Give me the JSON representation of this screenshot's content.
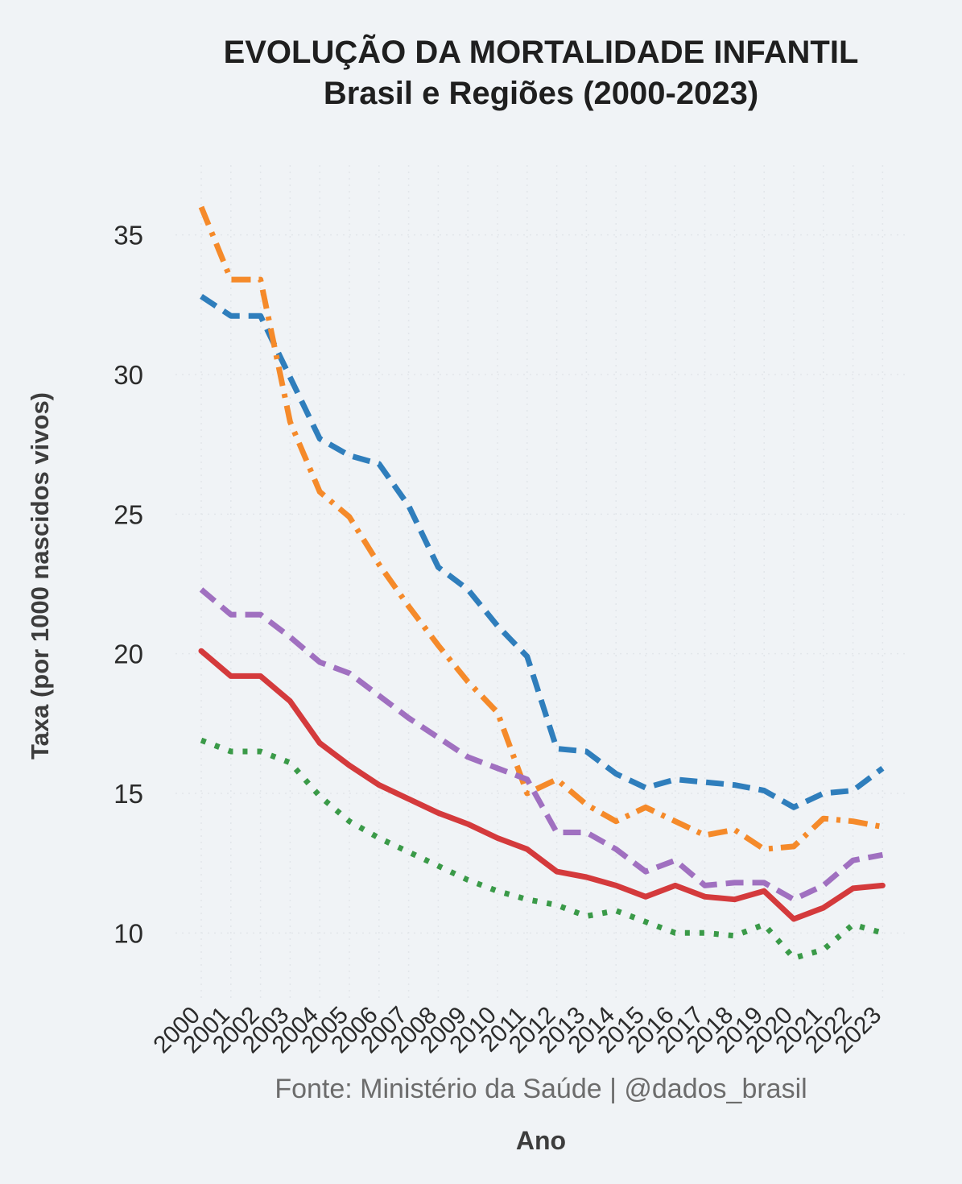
{
  "chart_data": {
    "type": "line",
    "title": "EVOLUÇÃO DA MORTALIDADE INFANTIL",
    "subtitle": "Brasil e Regiões (2000-2023)",
    "xlabel": "Ano",
    "ylabel": "Taxa (por 1000 nascidos vivos)",
    "source": "Fonte: Ministério da Saúde | @dados_brasil",
    "x": [
      "2000",
      "2001",
      "2002",
      "2003",
      "2004",
      "2005",
      "2006",
      "2007",
      "2008",
      "2009",
      "2010",
      "2011",
      "2012",
      "2013",
      "2014",
      "2015",
      "2016",
      "2017",
      "2018",
      "2019",
      "2020",
      "2021",
      "2022",
      "2023"
    ],
    "ylim": [
      7.5,
      37.5
    ],
    "yticks": [
      10,
      15,
      20,
      25,
      30,
      35
    ],
    "grid": true,
    "legend": "none",
    "series": [
      {
        "style": "dashed",
        "color": "#2f7ebc",
        "values": [
          32.8,
          32.1,
          32.1,
          29.9,
          27.7,
          27.1,
          26.8,
          25.3,
          23.1,
          22.3,
          21.0,
          19.9,
          16.6,
          16.5,
          15.7,
          15.2,
          15.5,
          15.4,
          15.3,
          15.1,
          14.5,
          15.0,
          15.1,
          15.9
        ]
      },
      {
        "style": "dashdot",
        "color": "#f58a2a",
        "values": [
          36.0,
          33.4,
          33.4,
          28.3,
          25.8,
          24.9,
          23.2,
          21.7,
          20.3,
          19.0,
          17.9,
          15.0,
          15.5,
          14.6,
          14.0,
          14.5,
          14.0,
          13.5,
          13.7,
          13.0,
          13.1,
          14.1,
          14.0,
          13.8
        ]
      },
      {
        "style": "dashed",
        "color": "#a070c0",
        "values": [
          22.3,
          21.4,
          21.4,
          20.6,
          19.7,
          19.3,
          18.5,
          17.7,
          17.0,
          16.3,
          15.9,
          15.5,
          13.6,
          13.6,
          13.0,
          12.2,
          12.6,
          11.7,
          11.8,
          11.8,
          11.2,
          11.7,
          12.6,
          12.8
        ]
      },
      {
        "style": "solid",
        "color": "#d43a3c",
        "values": [
          20.1,
          19.2,
          19.2,
          18.3,
          16.8,
          16.0,
          15.3,
          14.8,
          14.3,
          13.9,
          13.4,
          13.0,
          12.2,
          12.0,
          11.7,
          11.3,
          11.7,
          11.3,
          11.2,
          11.5,
          10.5,
          10.9,
          11.6,
          11.7
        ]
      },
      {
        "style": "dotted",
        "color": "#3a9a48",
        "values": [
          16.9,
          16.5,
          16.5,
          16.1,
          14.9,
          14.0,
          13.4,
          12.9,
          12.4,
          11.9,
          11.5,
          11.2,
          11.0,
          10.6,
          10.8,
          10.4,
          10.0,
          10.0,
          9.9,
          10.3,
          9.1,
          9.4,
          10.3,
          10.0
        ]
      }
    ]
  }
}
